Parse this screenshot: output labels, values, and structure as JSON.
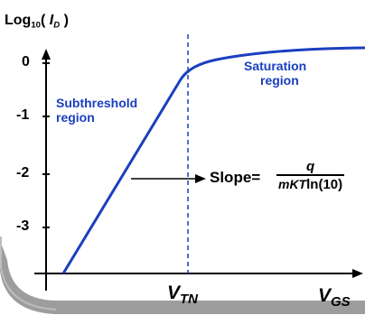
{
  "y_axis": {
    "label_prefix": "Log",
    "label_base": "10",
    "label_open": "(",
    "label_var": "I",
    "label_var_sub": "D",
    "label_close": ")",
    "ticks": [
      "0",
      "-1",
      "-2",
      "-3"
    ]
  },
  "x_axis": {
    "vtn_main": "V",
    "vtn_sub": "TN",
    "vgs_main": "V",
    "vgs_sub": "GS"
  },
  "regions": {
    "subthreshold_line1": "Subthreshold",
    "subthreshold_line2": "region",
    "saturation_line1": "Saturation",
    "saturation_line2": "region"
  },
  "slope": {
    "label": "Slope=",
    "numerator": "q",
    "denominator_italic": "mKT",
    "denominator_rest": "ln(10)"
  },
  "colors": {
    "curve": "#1a3fbf",
    "axes": "#000000",
    "frame_shadow": "#8c8c8c"
  }
}
